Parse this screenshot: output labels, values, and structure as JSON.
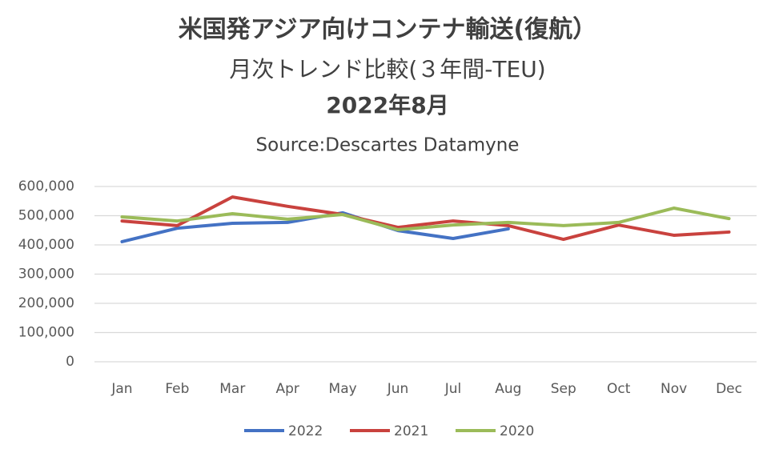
{
  "chart_data": {
    "type": "line",
    "title": [
      "米国発アジア向けコンテナ輸送(復航）",
      "月次トレンド比較(３年間-TEU)",
      "2022年8月"
    ],
    "subtitle": "Source:Descartes Datamyne",
    "categories": [
      "Jan",
      "Feb",
      "Mar",
      "Apr",
      "May",
      "Jun",
      "Jul",
      "Aug",
      "Sep",
      "Oct",
      "Nov",
      "Dec"
    ],
    "series": [
      {
        "name": "2022",
        "color": "#4472c4",
        "values": [
          411000,
          457000,
          474000,
          477000,
          510000,
          449000,
          422000,
          455000,
          null,
          null,
          null,
          null
        ]
      },
      {
        "name": "2021",
        "color": "#c9423e",
        "values": [
          482000,
          466000,
          564000,
          532000,
          504000,
          460000,
          482000,
          466000,
          419000,
          468000,
          433000,
          444000
        ]
      },
      {
        "name": "2020",
        "color": "#9bbb59",
        "values": [
          496000,
          482000,
          507000,
          488000,
          504000,
          452000,
          468000,
          477000,
          466000,
          477000,
          526000,
          490000
        ]
      }
    ],
    "ylim": [
      0,
      600000
    ],
    "yticks": [
      0,
      {
        "value": 100000,
        "label": "100,000"
      },
      {
        "value": 200000,
        "label": "200,000"
      },
      {
        "value": 300000,
        "label": "300,000"
      },
      {
        "value": 400000,
        "label": "400,000"
      },
      {
        "value": 500000,
        "label": "500,000"
      },
      {
        "value": 600000,
        "label": "600,000"
      }
    ],
    "grid": true,
    "legend": "bottom"
  }
}
